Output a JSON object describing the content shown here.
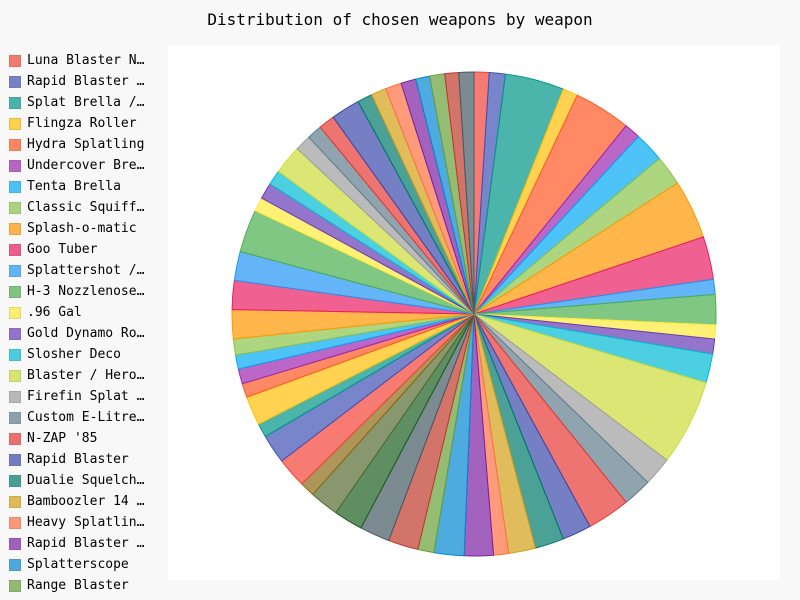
{
  "chart_data": {
    "type": "pie",
    "title": "Distribution of chosen weapons by weapon",
    "legend_position": "left",
    "legend_entries": [
      "Luna Blaster N…",
      "Rapid Blaster …",
      "Splat Brella /…",
      "Flingza Roller",
      "Hydra Splatling",
      "Undercover Bre…",
      "Tenta Brella",
      "Classic Squiff…",
      "Splash-o-matic",
      "Goo Tuber",
      "Splattershot /…",
      "H-3 Nozzlenose…",
      ".96 Gal",
      "Gold Dynamo Ro…",
      "Slosher Deco",
      "Blaster / Hero…",
      "Firefin Splat …",
      "Custom E-Litre…",
      "N-ZAP '85",
      "Rapid Blaster",
      "Dualie Squelch…",
      "Bamboozler 14 …",
      "Heavy Splatlin…",
      "Rapid Blaster …",
      "Splatterscope",
      "Range Blaster"
    ],
    "values": [
      1.4,
      1.5,
      5.5,
      1.4,
      5.3,
      1.5,
      2.8,
      2.8,
      5.5,
      4.0,
      1.4,
      2.8,
      1.3,
      1.4,
      2.7,
      8.0,
      2.7,
      2.7,
      4.0,
      2.7,
      2.7,
      2.5,
      1.4,
      2.7,
      2.8,
      1.5,
      2.8,
      2.8,
      2.7,
      2.7,
      1.4,
      2.8,
      2.7,
      1.3,
      2.7,
      1.3,
      1.4,
      1.3,
      1.5,
      2.7,
      2.7,
      2.7,
      4.0,
      1.3,
      1.5,
      1.4,
      2.7,
      1.5,
      1.4,
      1.5,
      2.7,
      1.4,
      1.4,
      1.5,
      1.4,
      1.3,
      1.4,
      1.3,
      1.4
    ],
    "colors": [
      "#F44336",
      "#3F51B5",
      "#009688",
      "#FFC107",
      "#FF5722",
      "#9C27B0",
      "#03A9F4",
      "#8BC34A",
      "#FF9800",
      "#E91E63",
      "#2196F3",
      "#4CAF50",
      "#FFEB3B",
      "#673AB7",
      "#00BCD4",
      "#CDDC39",
      "#9E9E9E",
      "#607D8B",
      "#E53935",
      "#3949AB",
      "#00796B",
      "#D4A017",
      "#FF7043",
      "#7B1FA2",
      "#0288D1",
      "#689F38",
      "#C0392B",
      "#455A64",
      "#1B5E20",
      "#556B2F",
      "#8B6914"
    ]
  }
}
